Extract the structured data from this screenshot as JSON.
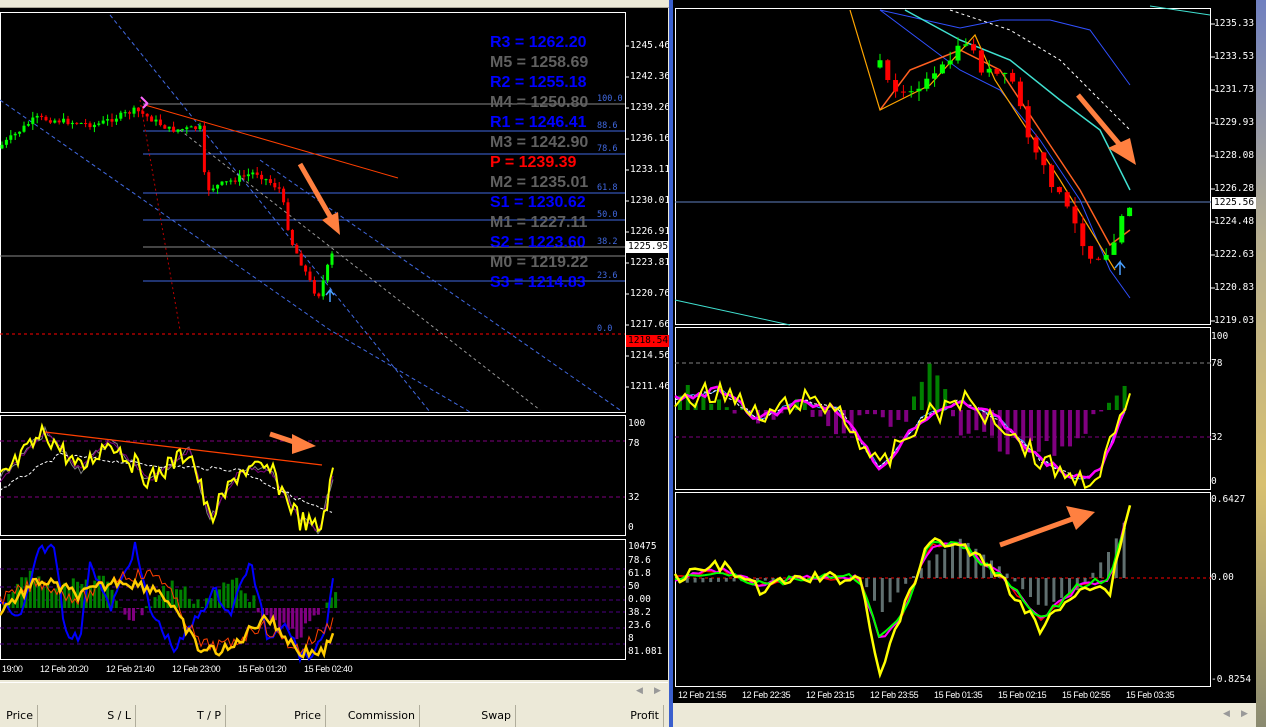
{
  "left_chart": {
    "price_axis": [
      "1245.46",
      "1242.36",
      "1239.26",
      "1236.16",
      "1233.11",
      "1230.01",
      "1226.91",
      "1223.81",
      "1220.76",
      "1217.66",
      "1214.56",
      "1211.46"
    ],
    "current_price": "1225.95",
    "pivot_price": "1218.54",
    "pivots": [
      {
        "label": "R3 = 1262.20",
        "color": "#0000ff"
      },
      {
        "label": "M5 = 1258.69",
        "color": "#606060"
      },
      {
        "label": "R2 = 1255.18",
        "color": "#0000ff"
      },
      {
        "label": "M4 = 1250.80",
        "color": "#606060"
      },
      {
        "label": "R1 = 1246.41",
        "color": "#0000ff"
      },
      {
        "label": "M3 = 1242.90",
        "color": "#606060"
      },
      {
        "label": "P   = 1239.39",
        "color": "#ff0000"
      },
      {
        "label": "M2 = 1235.01",
        "color": "#606060"
      },
      {
        "label": "S1 = 1230.62",
        "color": "#0000ff"
      },
      {
        "label": "M1 = 1227.11",
        "color": "#606060"
      },
      {
        "label": "S2 = 1223.60",
        "color": "#0000ff"
      },
      {
        "label": "M0 = 1219.22",
        "color": "#606060"
      },
      {
        "label": "S3 = 1214.83",
        "color": "#0000ff"
      }
    ],
    "fib_levels": [
      "100.0",
      "88.6",
      "78.6",
      "61.8",
      "50.0",
      "38.2",
      "23.6",
      "0.0"
    ],
    "ind1_axis": [
      "100",
      "78",
      "32",
      "0"
    ],
    "ind2_axis": [
      "10475",
      "78.6",
      "61.8",
      "50",
      "0.00",
      "38.2",
      "23.6",
      "8",
      "81.081"
    ],
    "time_axis": [
      "19:00",
      "12 Feb 20:20",
      "12 Feb 21:40",
      "12 Feb 23:00",
      "15 Feb 01:20",
      "15 Feb 02:40"
    ]
  },
  "right_chart": {
    "price_axis": [
      "1235.33",
      "1233.53",
      "1231.73",
      "1229.93",
      "1228.08",
      "1226.28",
      "1224.48",
      "1222.63",
      "1220.83",
      "1219.03"
    ],
    "current_price": "1225.56",
    "ind1_axis": [
      "100",
      "78",
      "32",
      "0"
    ],
    "ind2_axis": [
      "0.6427",
      "0.00",
      "-0.8254"
    ],
    "time_axis": [
      "12 Feb 21:55",
      "12 Feb 22:35",
      "12 Feb 23:15",
      "12 Feb 23:55",
      "15 Feb 01:35",
      "15 Feb 02:15",
      "15 Feb 02:55",
      "15 Feb 03:35"
    ]
  },
  "terminal": {
    "columns": [
      "Price",
      "S / L",
      "T / P",
      "Price",
      "Commission",
      "Swap",
      "Profit"
    ]
  },
  "colors": {
    "bull": "#00ff00",
    "bear": "#ff0000",
    "annotation_arrow": "#ff8040",
    "pivot_line": "#4169e1"
  }
}
